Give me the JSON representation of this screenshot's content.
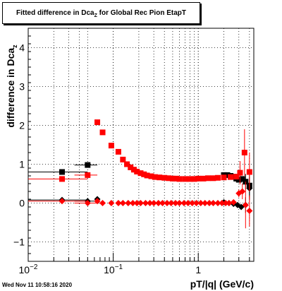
{
  "title": {
    "prefix": "Fitted difference in Dca",
    "sub": "Z",
    "suffix": " for Global Rec Pion EtapT"
  },
  "ylabel": {
    "main": "difference in Dca",
    "sub": "z"
  },
  "xlabel": "pT/|q| (GeV/c)",
  "timestamp": "Wed Nov 11 10:58:16 2020",
  "chart_data": {
    "type": "scatter",
    "x_scale": "log",
    "xlim": [
      0.01,
      4.5
    ],
    "ylim": [
      -1.5,
      4.5
    ],
    "grid": true,
    "x_ticks": [
      {
        "value": 0.01,
        "label": "10^-2"
      },
      {
        "value": 0.1,
        "label": "10^-1"
      },
      {
        "value": 1,
        "label": "1"
      }
    ],
    "y_ticks": [
      -1,
      0,
      1,
      2,
      3,
      4
    ],
    "series": [
      {
        "color": "#000000",
        "marker": "square",
        "points": [
          {
            "x": 0.025,
            "y": 0.8,
            "xerr": [
              0.01,
              0.05
            ],
            "yerr": 0.04
          },
          {
            "x": 0.05,
            "y": 0.98,
            "xerr": [
              0.035,
              0.065
            ],
            "yerr": 0.04
          },
          {
            "x": 2.0,
            "y": 0.72
          },
          {
            "x": 2.2,
            "y": 0.72
          },
          {
            "x": 2.4,
            "y": 0.7
          },
          {
            "x": 2.6,
            "y": 0.68
          },
          {
            "x": 2.8,
            "y": 0.63
          },
          {
            "x": 3.0,
            "y": 0.6
          },
          {
            "x": 3.3,
            "y": 0.62
          },
          {
            "x": 3.6,
            "y": 0.55,
            "yerr": 0.2
          },
          {
            "x": 4.0,
            "y": 0.45,
            "yerr": 0.3
          }
        ]
      },
      {
        "color": "#000000",
        "marker": "diamond",
        "points": [
          {
            "x": 0.025,
            "y": 0.08,
            "xerr": [
              0.01,
              0.05
            ],
            "yerr": 0.04
          },
          {
            "x": 0.05,
            "y": 0.05,
            "xerr": [
              0.035,
              0.065
            ],
            "yerr": 0.04
          },
          {
            "x": 0.065,
            "y": 0.1
          },
          {
            "x": 2.0,
            "y": 0.02
          },
          {
            "x": 2.3,
            "y": 0.0
          },
          {
            "x": 2.6,
            "y": -0.02
          },
          {
            "x": 2.9,
            "y": -0.05
          },
          {
            "x": 3.2,
            "y": -0.1
          },
          {
            "x": 3.6,
            "y": -0.05,
            "yerr": 0.2
          },
          {
            "x": 4.0,
            "y": 0.38,
            "yerr": 0.3
          }
        ]
      },
      {
        "color": "#ff0000",
        "marker": "square",
        "points": [
          {
            "x": 0.025,
            "y": 0.62,
            "xerr": [
              0.01,
              0.05
            ],
            "yerr": 0.05
          },
          {
            "x": 0.05,
            "y": 0.72,
            "xerr": [
              0.035,
              0.065
            ],
            "yerr": 0.05
          },
          {
            "x": 0.065,
            "y": 2.08
          },
          {
            "x": 0.075,
            "y": 1.82
          },
          {
            "x": 0.095,
            "y": 1.48
          },
          {
            "x": 0.115,
            "y": 1.32
          },
          {
            "x": 0.13,
            "y": 1.12
          },
          {
            "x": 0.145,
            "y": 1.0
          },
          {
            "x": 0.16,
            "y": 0.92
          },
          {
            "x": 0.175,
            "y": 0.86
          },
          {
            "x": 0.19,
            "y": 0.81
          },
          {
            "x": 0.21,
            "y": 0.77
          },
          {
            "x": 0.23,
            "y": 0.74
          },
          {
            "x": 0.25,
            "y": 0.71
          },
          {
            "x": 0.28,
            "y": 0.69
          },
          {
            "x": 0.31,
            "y": 0.67
          },
          {
            "x": 0.35,
            "y": 0.66
          },
          {
            "x": 0.4,
            "y": 0.65
          },
          {
            "x": 0.45,
            "y": 0.64
          },
          {
            "x": 0.5,
            "y": 0.63
          },
          {
            "x": 0.55,
            "y": 0.63
          },
          {
            "x": 0.6,
            "y": 0.62
          },
          {
            "x": 0.7,
            "y": 0.62
          },
          {
            "x": 0.8,
            "y": 0.62
          },
          {
            "x": 0.9,
            "y": 0.62
          },
          {
            "x": 1.0,
            "y": 0.63
          },
          {
            "x": 1.15,
            "y": 0.63
          },
          {
            "x": 1.3,
            "y": 0.64
          },
          {
            "x": 1.5,
            "y": 0.64
          },
          {
            "x": 1.7,
            "y": 0.65
          },
          {
            "x": 2.0,
            "y": 0.66
          },
          {
            "x": 2.4,
            "y": 0.67
          },
          {
            "x": 2.8,
            "y": 0.68
          },
          {
            "x": 3.1,
            "y": 0.78,
            "yerr": 0.3
          },
          {
            "x": 3.5,
            "y": 1.3,
            "yerr": 0.6
          },
          {
            "x": 4.0,
            "y": 0.8,
            "yerr": 0.5
          }
        ]
      },
      {
        "color": "#ff0000",
        "marker": "diamond",
        "points": [
          {
            "x": 0.025,
            "y": 0.05,
            "xerr": [
              0.01,
              0.05
            ],
            "yerr": 0.04
          },
          {
            "x": 0.05,
            "y": 0.0,
            "xerr": [
              0.035,
              0.065
            ],
            "yerr": 0.04
          },
          {
            "x": 0.065,
            "y": 0.05
          },
          {
            "x": 0.075,
            "y": 0.0
          },
          {
            "x": 0.095,
            "y": 0.0
          },
          {
            "x": 0.115,
            "y": 0.0
          },
          {
            "x": 0.13,
            "y": 0.0
          },
          {
            "x": 0.15,
            "y": 0.0
          },
          {
            "x": 0.17,
            "y": 0.0
          },
          {
            "x": 0.19,
            "y": 0.0
          },
          {
            "x": 0.21,
            "y": 0.0
          },
          {
            "x": 0.24,
            "y": 0.0
          },
          {
            "x": 0.27,
            "y": 0.0
          },
          {
            "x": 0.3,
            "y": 0.0
          },
          {
            "x": 0.34,
            "y": 0.0
          },
          {
            "x": 0.38,
            "y": 0.0
          },
          {
            "x": 0.43,
            "y": 0.0
          },
          {
            "x": 0.48,
            "y": 0.0
          },
          {
            "x": 0.54,
            "y": 0.0
          },
          {
            "x": 0.6,
            "y": 0.0
          },
          {
            "x": 0.68,
            "y": 0.0
          },
          {
            "x": 0.76,
            "y": 0.0
          },
          {
            "x": 0.85,
            "y": 0.0
          },
          {
            "x": 0.95,
            "y": 0.0
          },
          {
            "x": 1.07,
            "y": 0.0
          },
          {
            "x": 1.2,
            "y": 0.0
          },
          {
            "x": 1.35,
            "y": 0.0
          },
          {
            "x": 1.5,
            "y": 0.0
          },
          {
            "x": 1.7,
            "y": 0.0
          },
          {
            "x": 1.9,
            "y": 0.0
          },
          {
            "x": 2.1,
            "y": 0.0
          },
          {
            "x": 2.3,
            "y": 0.0
          },
          {
            "x": 2.6,
            "y": 0.02
          },
          {
            "x": 3.0,
            "y": 0.25,
            "yerr": 0.1
          },
          {
            "x": 3.3,
            "y": 0.3,
            "yerr": 0.2
          },
          {
            "x": 3.6,
            "y": -0.05,
            "yerr": 0.6
          },
          {
            "x": 4.0,
            "y": -0.2,
            "yerr": 0.4
          }
        ]
      }
    ]
  }
}
